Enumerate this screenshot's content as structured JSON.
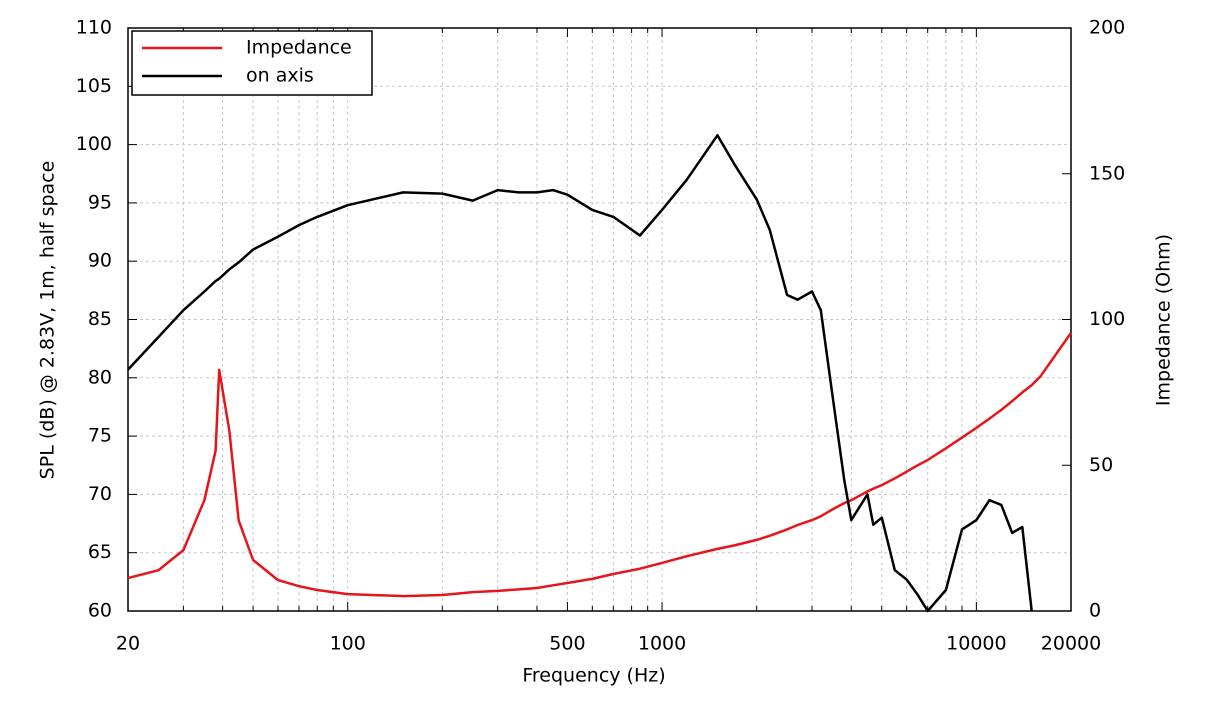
{
  "chart_data": {
    "type": "line",
    "xlabel": "Frequency (Hz)",
    "ylabel": "SPL (dB) @ 2.83V, 1m, half space",
    "y2label": "Impedance (Ohm)",
    "log_x": true,
    "grid": true,
    "legend": "upper left",
    "xlim": [
      20,
      20000
    ],
    "xticks": [
      20,
      100,
      500,
      1000,
      10000,
      20000
    ],
    "x_minor_ticks": [
      30,
      40,
      50,
      60,
      70,
      80,
      90,
      200,
      300,
      400,
      600,
      700,
      800,
      900,
      2000,
      3000,
      4000,
      5000,
      6000,
      7000,
      8000,
      9000
    ],
    "ylim": [
      60,
      110
    ],
    "yticks": [
      60,
      65,
      70,
      75,
      80,
      85,
      90,
      95,
      100,
      105,
      110
    ],
    "y2lim": [
      0,
      200
    ],
    "y2ticks": [
      0,
      50,
      100,
      150,
      200
    ],
    "x": [
      20,
      25,
      30,
      35,
      38,
      39,
      42,
      45,
      50,
      60,
      70,
      80,
      100,
      150,
      200,
      250,
      300,
      350,
      400,
      450,
      500,
      600,
      700,
      850,
      1000,
      1200,
      1500,
      1700,
      2000,
      2200,
      2500,
      2700,
      3000,
      3200,
      3500,
      3800,
      4000,
      4500,
      4700,
      5000,
      5500,
      6000,
      6500,
      7000,
      8000,
      9000,
      10000,
      11000,
      12000,
      13000,
      14000,
      15000,
      16000,
      20000
    ],
    "series": [
      {
        "name": "Impedance",
        "color": "#e8141b",
        "axis": "y2",
        "values": [
          11.3,
          14,
          20.9,
          38,
          55,
          82.7,
          62,
          31,
          17.5,
          10.6,
          8.5,
          7.2,
          5.8,
          5.1,
          5.5,
          6.5,
          6.9,
          7.4,
          7.9,
          8.8,
          9.6,
          11,
          12.7,
          14.5,
          16.5,
          18.8,
          21.3,
          22.5,
          24.4,
          25.8,
          28,
          29.5,
          31.2,
          32.5,
          35,
          37,
          38,
          41,
          42,
          43.2,
          45.5,
          47.8,
          50,
          51.8,
          55.8,
          59.5,
          62.8,
          66,
          69,
          72,
          75,
          77.5,
          80.5,
          95.4
        ]
      },
      {
        "name": "on axis",
        "color": "#000000",
        "values": [
          80.7,
          83.5,
          85.8,
          87.4,
          88.3,
          88.5,
          89.3,
          89.9,
          91,
          92.1,
          93.1,
          93.8,
          94.8,
          95.9,
          95.8,
          95.2,
          96.1,
          95.9,
          95.9,
          96.1,
          95.7,
          94.4,
          93.8,
          92.2,
          94.4,
          97,
          100.8,
          98.3,
          95.3,
          92.7,
          87.1,
          86.7,
          87.4,
          85.8,
          78.1,
          71.2,
          67.8,
          70,
          67.4,
          68,
          63.5,
          62.7,
          61.4,
          60,
          61.8,
          67,
          67.8,
          69.5,
          69.1,
          66.7,
          67.2,
          60,
          null,
          null
        ]
      }
    ]
  }
}
